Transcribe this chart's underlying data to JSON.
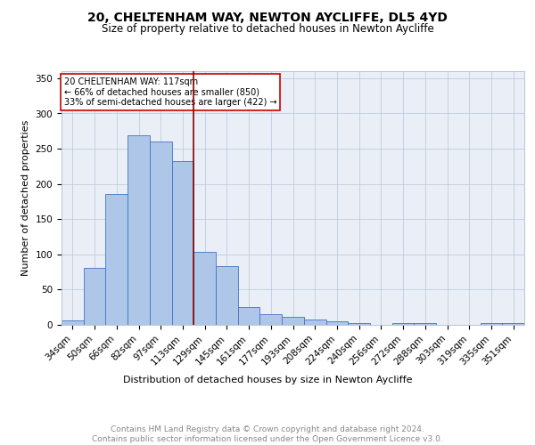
{
  "title1": "20, CHELTENHAM WAY, NEWTON AYCLIFFE, DL5 4YD",
  "title2": "Size of property relative to detached houses in Newton Aycliffe",
  "xlabel": "Distribution of detached houses by size in Newton Aycliffe",
  "ylabel": "Number of detached properties",
  "categories": [
    "34sqm",
    "50sqm",
    "66sqm",
    "82sqm",
    "97sqm",
    "113sqm",
    "129sqm",
    "145sqm",
    "161sqm",
    "177sqm",
    "193sqm",
    "208sqm",
    "224sqm",
    "240sqm",
    "256sqm",
    "272sqm",
    "288sqm",
    "303sqm",
    "319sqm",
    "335sqm",
    "351sqm"
  ],
  "values": [
    6,
    81,
    186,
    269,
    260,
    233,
    103,
    84,
    25,
    15,
    12,
    7,
    5,
    3,
    0,
    3,
    3,
    0,
    0,
    3,
    3
  ],
  "bar_color": "#aec6e8",
  "bar_edge_color": "#4472c4",
  "vline_x": 5.5,
  "vline_color": "#8b0000",
  "annotation_text": "20 CHELTENHAM WAY: 117sqm\n← 66% of detached houses are smaller (850)\n33% of semi-detached houses are larger (422) →",
  "annotation_box_color": "#ffffff",
  "annotation_box_edge": "#cc0000",
  "ylim": [
    0,
    360
  ],
  "yticks": [
    0,
    50,
    100,
    150,
    200,
    250,
    300,
    350
  ],
  "footnote": "Contains HM Land Registry data © Crown copyright and database right 2024.\nContains public sector information licensed under the Open Government Licence v3.0.",
  "plot_bg_color": "#eaeff7",
  "title1_fontsize": 10,
  "title2_fontsize": 8.5,
  "xlabel_fontsize": 8,
  "ylabel_fontsize": 8,
  "footnote_fontsize": 6.5,
  "tick_fontsize": 7.5,
  "annot_fontsize": 7
}
